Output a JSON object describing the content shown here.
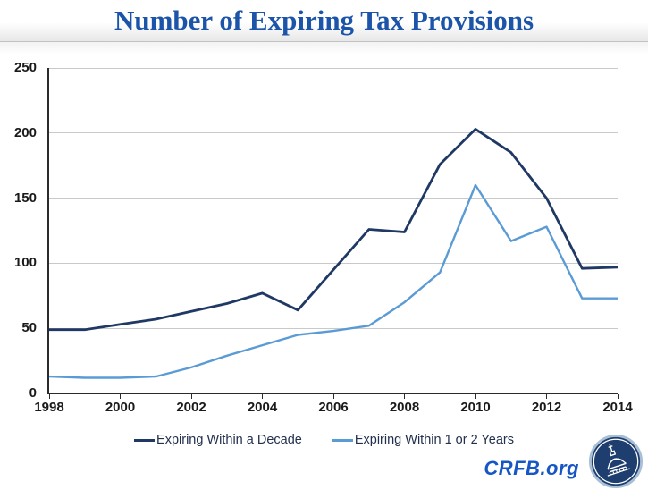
{
  "title": "Number of Expiring Tax Provisions",
  "footer": {
    "brand": "CRFB.org",
    "logo_icon": "capitol-dome-logo"
  },
  "colors": {
    "title_blue": "#1b54a8",
    "decade_line": "#1f3864",
    "short_line": "#5b9bd5",
    "gridline": "#c9c9c9",
    "axis": "#2b2b2b",
    "tick_label": "#1a1a1a",
    "legend_text": "#22304e",
    "brand_blue": "#1656c5",
    "logo_navy": "#1d3e6e",
    "logo_ring": "#a9bfd6"
  },
  "chart_data": {
    "type": "line",
    "x": [
      1998,
      1999,
      2000,
      2001,
      2002,
      2003,
      2004,
      2005,
      2006,
      2007,
      2008,
      2009,
      2010,
      2011,
      2012,
      2013,
      2014
    ],
    "series": [
      {
        "name": "Expiring Within a Decade",
        "color": "#1f3864",
        "stroke_width": 2.8,
        "values": [
          49,
          49,
          53,
          57,
          63,
          69,
          77,
          64,
          95,
          126,
          124,
          176,
          203,
          185,
          150,
          96,
          97
        ]
      },
      {
        "name": "Expiring Within 1 or 2 Years",
        "color": "#5b9bd5",
        "stroke_width": 2.4,
        "values": [
          13,
          12,
          12,
          13,
          20,
          29,
          37,
          45,
          48,
          52,
          70,
          93,
          160,
          117,
          128,
          73,
          73
        ]
      }
    ],
    "title": "Number of Expiring Tax Provisions",
    "xlabel": "",
    "ylabel": "",
    "xlim": [
      1998,
      2014
    ],
    "ylim": [
      0,
      250
    ],
    "yticks": [
      0,
      50,
      100,
      150,
      200,
      250
    ],
    "xticks": [
      1998,
      2000,
      2002,
      2004,
      2006,
      2008,
      2010,
      2012,
      2014
    ],
    "grid": true,
    "legend_position": "bottom"
  }
}
